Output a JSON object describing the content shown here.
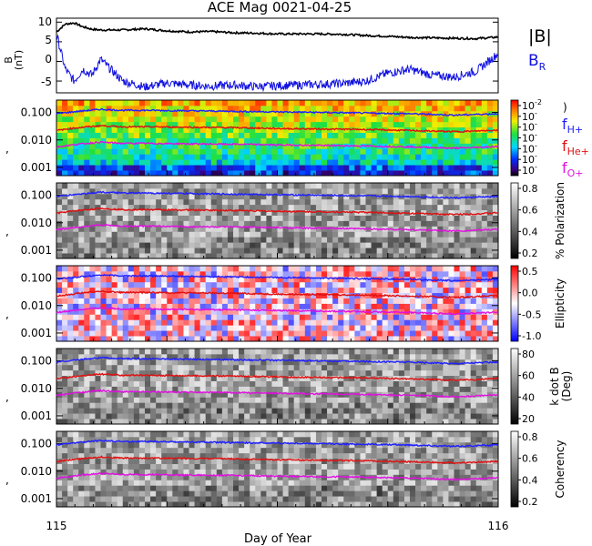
{
  "title": "ACE Mag 0021-04-25",
  "xaxis": {
    "label": "Day of Year",
    "ticks": [
      "115",
      "116"
    ],
    "range": [
      115,
      116
    ]
  },
  "colors": {
    "b_total": "#000000",
    "b_r": "#1010e0",
    "f_h": "#2020ff",
    "f_he": "#e01010",
    "f_o": "#e010e0"
  },
  "panel1": {
    "ylabel": "B",
    "yunit": "(nT)",
    "yticks": [
      "10",
      "5",
      "0",
      "-5"
    ],
    "legend_b": "|B|",
    "legend_br_main": "B",
    "legend_br_sub": "R"
  },
  "freq_panels": {
    "yticks": [
      "0.100",
      "0.010",
      "0.001"
    ]
  },
  "panel2": {
    "colorbar_ticks": [
      {
        "base": "10",
        "exp": "-2"
      },
      {
        "base": "10",
        "exp": "-"
      },
      {
        "base": "10",
        "exp": "-"
      },
      {
        "base": "10",
        "exp": "-"
      },
      {
        "base": "10",
        "exp": "-"
      },
      {
        "base": "10",
        "exp": "-"
      },
      {
        "base": "10",
        "exp": "-"
      }
    ],
    "colorbar_label_frag": ")",
    "legend": [
      {
        "main": "f",
        "sub": "H+",
        "color": "#2020ff"
      },
      {
        "main": "f",
        "sub": "He+",
        "color": "#e01010"
      },
      {
        "main": "f",
        "sub": "O+",
        "color": "#e010e0"
      }
    ]
  },
  "panel3": {
    "colorbar_ticks": [
      "0.8",
      "0.6",
      "0.4",
      "0.2"
    ],
    "colorbar_label": "% Polarization"
  },
  "panel4": {
    "colorbar_ticks": [
      "0.5",
      "0.0",
      "-0.5",
      "-1.0"
    ],
    "colorbar_label": "Ellipticity"
  },
  "panel5": {
    "colorbar_ticks": [
      "80",
      "60",
      "40",
      "20"
    ],
    "colorbar_label": "k dot B",
    "colorbar_label2": "(Deg)"
  },
  "panel6": {
    "colorbar_ticks": [
      "0.8",
      "0.6",
      "0.4",
      "0.2"
    ],
    "colorbar_label": "Coherency"
  },
  "chart_data": {
    "type": "line",
    "title": "ACE Mag 0021-04-25",
    "xlabel": "Day of Year",
    "xlim": [
      115,
      116
    ],
    "panel1_ylim": [
      -8,
      11
    ],
    "freq_ylim_log10": [
      -3.3,
      -0.55
    ],
    "series": [
      {
        "name": "|B|",
        "x": [
          115.0,
          115.02,
          115.04,
          115.06,
          115.08,
          115.1,
          115.15,
          115.2,
          115.25,
          115.3,
          115.35,
          115.4,
          115.45,
          115.5,
          115.55,
          115.6,
          115.65,
          115.7,
          115.75,
          115.8,
          115.85,
          115.9,
          115.95,
          116.0
        ],
        "y": [
          7.5,
          9.5,
          9.8,
          8.8,
          8.2,
          8.0,
          8.0,
          8.3,
          7.8,
          7.5,
          7.6,
          7.3,
          7.2,
          7.0,
          7.0,
          7.0,
          6.9,
          6.6,
          6.4,
          6.1,
          6.0,
          5.9,
          5.8,
          6.2
        ]
      },
      {
        "name": "B_R",
        "x": [
          115.0,
          115.02,
          115.04,
          115.06,
          115.08,
          115.1,
          115.15,
          115.2,
          115.25,
          115.3,
          115.35,
          115.4,
          115.45,
          115.5,
          115.55,
          115.6,
          115.65,
          115.7,
          115.75,
          115.8,
          115.85,
          115.9,
          115.95,
          116.0
        ],
        "y": [
          7.0,
          -2.0,
          -5.0,
          -2.0,
          -3.5,
          0.5,
          -5.0,
          -6.5,
          -5.5,
          -6.0,
          -6.3,
          -6.0,
          -6.4,
          -6.2,
          -6.0,
          -5.8,
          -5.6,
          -5.0,
          -3.0,
          -2.0,
          -3.5,
          -4.0,
          -2.5,
          2.0
        ]
      },
      {
        "name": "f_H+",
        "x": [
          115.0,
          115.05,
          115.1,
          115.15,
          115.2,
          115.3,
          115.4,
          115.5,
          115.6,
          115.7,
          115.8,
          115.85,
          115.9,
          115.95,
          116.0
        ],
        "y": [
          0.09,
          0.11,
          0.13,
          0.12,
          0.12,
          0.115,
          0.11,
          0.105,
          0.1,
          0.095,
          0.09,
          0.085,
          0.08,
          0.085,
          0.09
        ]
      },
      {
        "name": "f_He+",
        "x": [
          115.0,
          115.05,
          115.1,
          115.15,
          115.2,
          115.3,
          115.4,
          115.5,
          115.6,
          115.7,
          115.8,
          115.85,
          115.9,
          115.95,
          116.0
        ],
        "y": [
          0.022,
          0.028,
          0.033,
          0.03,
          0.03,
          0.029,
          0.028,
          0.026,
          0.025,
          0.024,
          0.022,
          0.021,
          0.02,
          0.021,
          0.023
        ]
      },
      {
        "name": "f_O+",
        "x": [
          115.0,
          115.05,
          115.1,
          115.15,
          115.2,
          115.3,
          115.4,
          115.5,
          115.6,
          115.7,
          115.8,
          115.85,
          115.9,
          115.95,
          116.0
        ],
        "y": [
          0.0055,
          0.007,
          0.0083,
          0.0075,
          0.0075,
          0.0072,
          0.007,
          0.0066,
          0.0063,
          0.006,
          0.0056,
          0.0053,
          0.005,
          0.0053,
          0.0058
        ]
      }
    ]
  }
}
